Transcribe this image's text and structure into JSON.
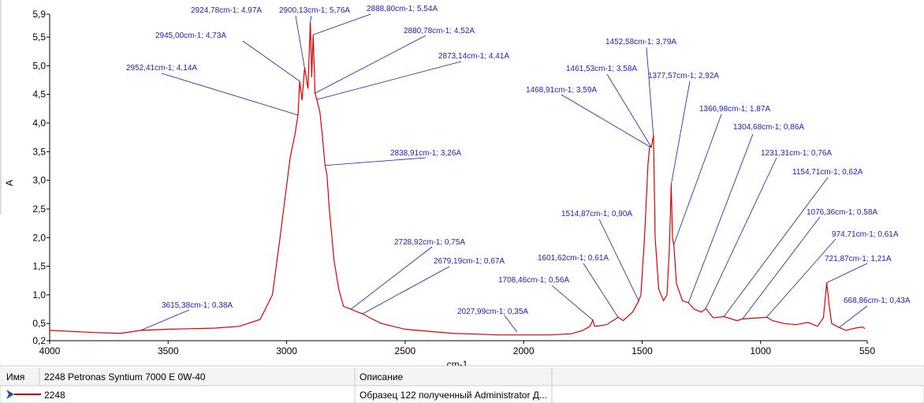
{
  "chart_data": {
    "type": "line",
    "x_label": "cm-1",
    "y_label": "A",
    "xlim": [
      4000,
      550
    ],
    "ylim": [
      0.2,
      5.9
    ],
    "xticks": [
      4000,
      3500,
      3000,
      2500,
      2000,
      1500,
      1000,
      550
    ],
    "yticks": [
      {
        "value": 5.9,
        "label": "5,9"
      },
      {
        "value": 5.5,
        "label": "5,5"
      },
      {
        "value": 5.0,
        "label": "5,0"
      },
      {
        "value": 4.5,
        "label": "4,5"
      },
      {
        "value": 4.0,
        "label": "4,0"
      },
      {
        "value": 3.5,
        "label": "3,5"
      },
      {
        "value": 3.0,
        "label": "3,0"
      },
      {
        "value": 2.5,
        "label": "2,5"
      },
      {
        "value": 2.0,
        "label": "2,0"
      },
      {
        "value": 1.5,
        "label": "1,5"
      },
      {
        "value": 1.0,
        "label": "1,0"
      },
      {
        "value": 0.5,
        "label": "0,5"
      },
      {
        "value": 0.2,
        "label": "0,2"
      }
    ],
    "series": [
      {
        "name": "2248",
        "color": "#e00000",
        "x": [
          4000,
          3800,
          3700,
          3615,
          3500,
          3300,
          3200,
          3112,
          3060,
          3028,
          2985,
          2965,
          2952,
          2945,
          2935,
          2924,
          2910,
          2900,
          2894,
          2888,
          2880,
          2873,
          2860,
          2850,
          2838,
          2830,
          2820,
          2800,
          2780,
          2760,
          2728,
          2700,
          2679,
          2650,
          2600,
          2500,
          2300,
          2100,
          2000,
          1900,
          1800,
          1750,
          1720,
          1708,
          1700,
          1650,
          1601,
          1580,
          1540,
          1520,
          1514,
          1505,
          1490,
          1475,
          1468,
          1461,
          1452,
          1445,
          1430,
          1410,
          1395,
          1385,
          1377,
          1372,
          1366,
          1355,
          1330,
          1304,
          1280,
          1250,
          1231,
          1200,
          1154,
          1100,
          1076,
          1000,
          974,
          950,
          900,
          850,
          800,
          760,
          735,
          721,
          710,
          700,
          668,
          640,
          600,
          570,
          560
        ],
        "values": [
          0.38,
          0.34,
          0.33,
          0.38,
          0.4,
          0.42,
          0.45,
          0.57,
          1.0,
          2.0,
          3.4,
          3.8,
          4.14,
          4.73,
          4.4,
          4.97,
          4.6,
          5.76,
          4.8,
          5.54,
          4.52,
          4.41,
          4.2,
          3.8,
          3.26,
          3.1,
          2.5,
          1.6,
          1.1,
          0.8,
          0.75,
          0.7,
          0.67,
          0.6,
          0.5,
          0.4,
          0.33,
          0.3,
          0.3,
          0.3,
          0.32,
          0.38,
          0.45,
          0.56,
          0.45,
          0.48,
          0.61,
          0.55,
          0.7,
          0.85,
          0.9,
          1.0,
          2.0,
          3.3,
          3.59,
          3.58,
          3.79,
          2.0,
          1.1,
          0.9,
          1.0,
          1.8,
          2.92,
          2.0,
          1.87,
          1.2,
          0.9,
          0.86,
          0.75,
          0.7,
          0.76,
          0.6,
          0.62,
          0.55,
          0.58,
          0.6,
          0.61,
          0.55,
          0.5,
          0.48,
          0.52,
          0.45,
          0.6,
          1.21,
          0.8,
          0.5,
          0.43,
          0.38,
          0.42,
          0.44,
          0.41
        ]
      }
    ],
    "annotations": [
      {
        "text": "2924,78cm-1; 4,97A",
        "x": 2924.78,
        "y": 4.97
      },
      {
        "text": "2900,13cm-1; 5,76A",
        "x": 2900.13,
        "y": 5.76
      },
      {
        "text": "2888,80cm-1; 5,54A",
        "x": 2888.8,
        "y": 5.54
      },
      {
        "text": "2945,00cm-1; 4,73A",
        "x": 2945.0,
        "y": 4.73
      },
      {
        "text": "2880,78cm-1; 4,52A",
        "x": 2880.78,
        "y": 4.52
      },
      {
        "text": "2952,41cm-1; 4,14A",
        "x": 2952.41,
        "y": 4.14
      },
      {
        "text": "2873,14cm-1; 4,41A",
        "x": 2873.14,
        "y": 4.41
      },
      {
        "text": "2838,91cm-1; 3,26A",
        "x": 2838.91,
        "y": 3.26
      },
      {
        "text": "1452,58cm-1; 3,79A",
        "x": 1452.58,
        "y": 3.79
      },
      {
        "text": "1461,53cm-1; 3,58A",
        "x": 1461.53,
        "y": 3.58
      },
      {
        "text": "1468,91cm-1; 3,59A",
        "x": 1468.91,
        "y": 3.59
      },
      {
        "text": "1377,57cm-1; 2,92A",
        "x": 1377.57,
        "y": 2.92
      },
      {
        "text": "1366,98cm-1; 1,87A",
        "x": 1366.98,
        "y": 1.87
      },
      {
        "text": "1304,68cm-1; 0,86A",
        "x": 1304.68,
        "y": 0.86
      },
      {
        "text": "1231,31cm-1; 0,76A",
        "x": 1231.31,
        "y": 0.76
      },
      {
        "text": "1154,71cm-1; 0,62A",
        "x": 1154.71,
        "y": 0.62
      },
      {
        "text": "1076,36cm-1; 0,58A",
        "x": 1076.36,
        "y": 0.58
      },
      {
        "text": "974,71cm-1; 0,61A",
        "x": 974.71,
        "y": 0.61
      },
      {
        "text": "721,87cm-1; 1,21A",
        "x": 721.87,
        "y": 1.21
      },
      {
        "text": "668,86cm-1; 0,43A",
        "x": 668.86,
        "y": 0.43
      },
      {
        "text": "1514,87cm-1; 0,90A",
        "x": 1514.87,
        "y": 0.9
      },
      {
        "text": "1601,62cm-1; 0,61A",
        "x": 1601.62,
        "y": 0.61
      },
      {
        "text": "1708,46cm-1; 0,56A",
        "x": 1708.46,
        "y": 0.56
      },
      {
        "text": "2027,99cm-1; 0,35A",
        "x": 2027.99,
        "y": 0.35
      },
      {
        "text": "2728,92cm-1; 0,75A",
        "x": 2728.92,
        "y": 0.75
      },
      {
        "text": "2679,19cm-1; 0,67A",
        "x": 2679.19,
        "y": 0.67
      },
      {
        "text": "3615,38cm-1; 0,38A",
        "x": 3615.38,
        "y": 0.38
      }
    ]
  },
  "legend_panel": {
    "headers": [
      "Имя",
      "2248 Petronas Syntium 7000 E 0W-40",
      "Описание"
    ],
    "description": "Образец 122 полученный Administrator Д..."
  }
}
